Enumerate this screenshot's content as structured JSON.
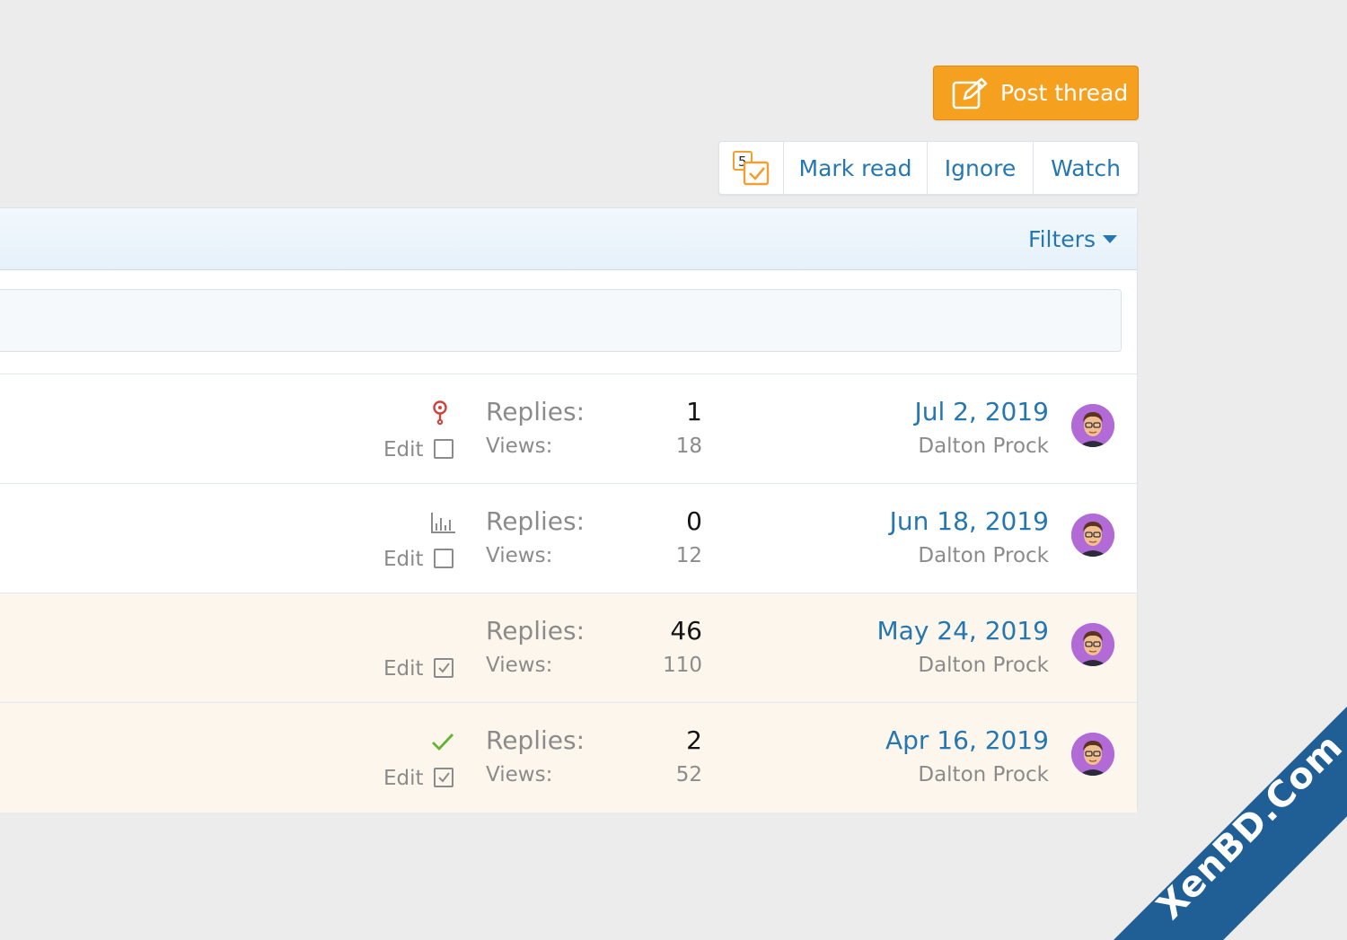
{
  "header": {
    "post_thread_label": "Post thread"
  },
  "toolbar": {
    "badge_count": "5",
    "mark_read_label": "Mark read",
    "ignore_label": "Ignore",
    "watch_label": "Watch"
  },
  "filter_bar": {
    "filters_label": "Filters"
  },
  "threads": [
    {
      "status_icon": "question-icon",
      "edit_label": "Edit",
      "selected": false,
      "replies_label": "Replies:",
      "replies": "1",
      "views_label": "Views:",
      "views": "18",
      "date": "Jul 2, 2019",
      "author": "Dalton Prock",
      "highlight": false
    },
    {
      "status_icon": "poll-icon",
      "edit_label": "Edit",
      "selected": false,
      "replies_label": "Replies:",
      "replies": "0",
      "views_label": "Views:",
      "views": "12",
      "date": "Jun 18, 2019",
      "author": "Dalton Prock",
      "highlight": false
    },
    {
      "status_icon": "none",
      "edit_label": "Edit",
      "selected": true,
      "replies_label": "Replies:",
      "replies": "46",
      "views_label": "Views:",
      "views": "110",
      "date": "May 24, 2019",
      "author": "Dalton Prock",
      "highlight": true
    },
    {
      "status_icon": "check-icon",
      "edit_label": "Edit",
      "selected": true,
      "replies_label": "Replies:",
      "replies": "2",
      "views_label": "Views:",
      "views": "52",
      "date": "Apr 16, 2019",
      "author": "Dalton Prock",
      "highlight": true
    }
  ],
  "watermark": {
    "text": "XenBD.Com"
  },
  "colors": {
    "accent": "#f6a01f",
    "link": "#2577b1",
    "watermark": "#1f5f96"
  }
}
